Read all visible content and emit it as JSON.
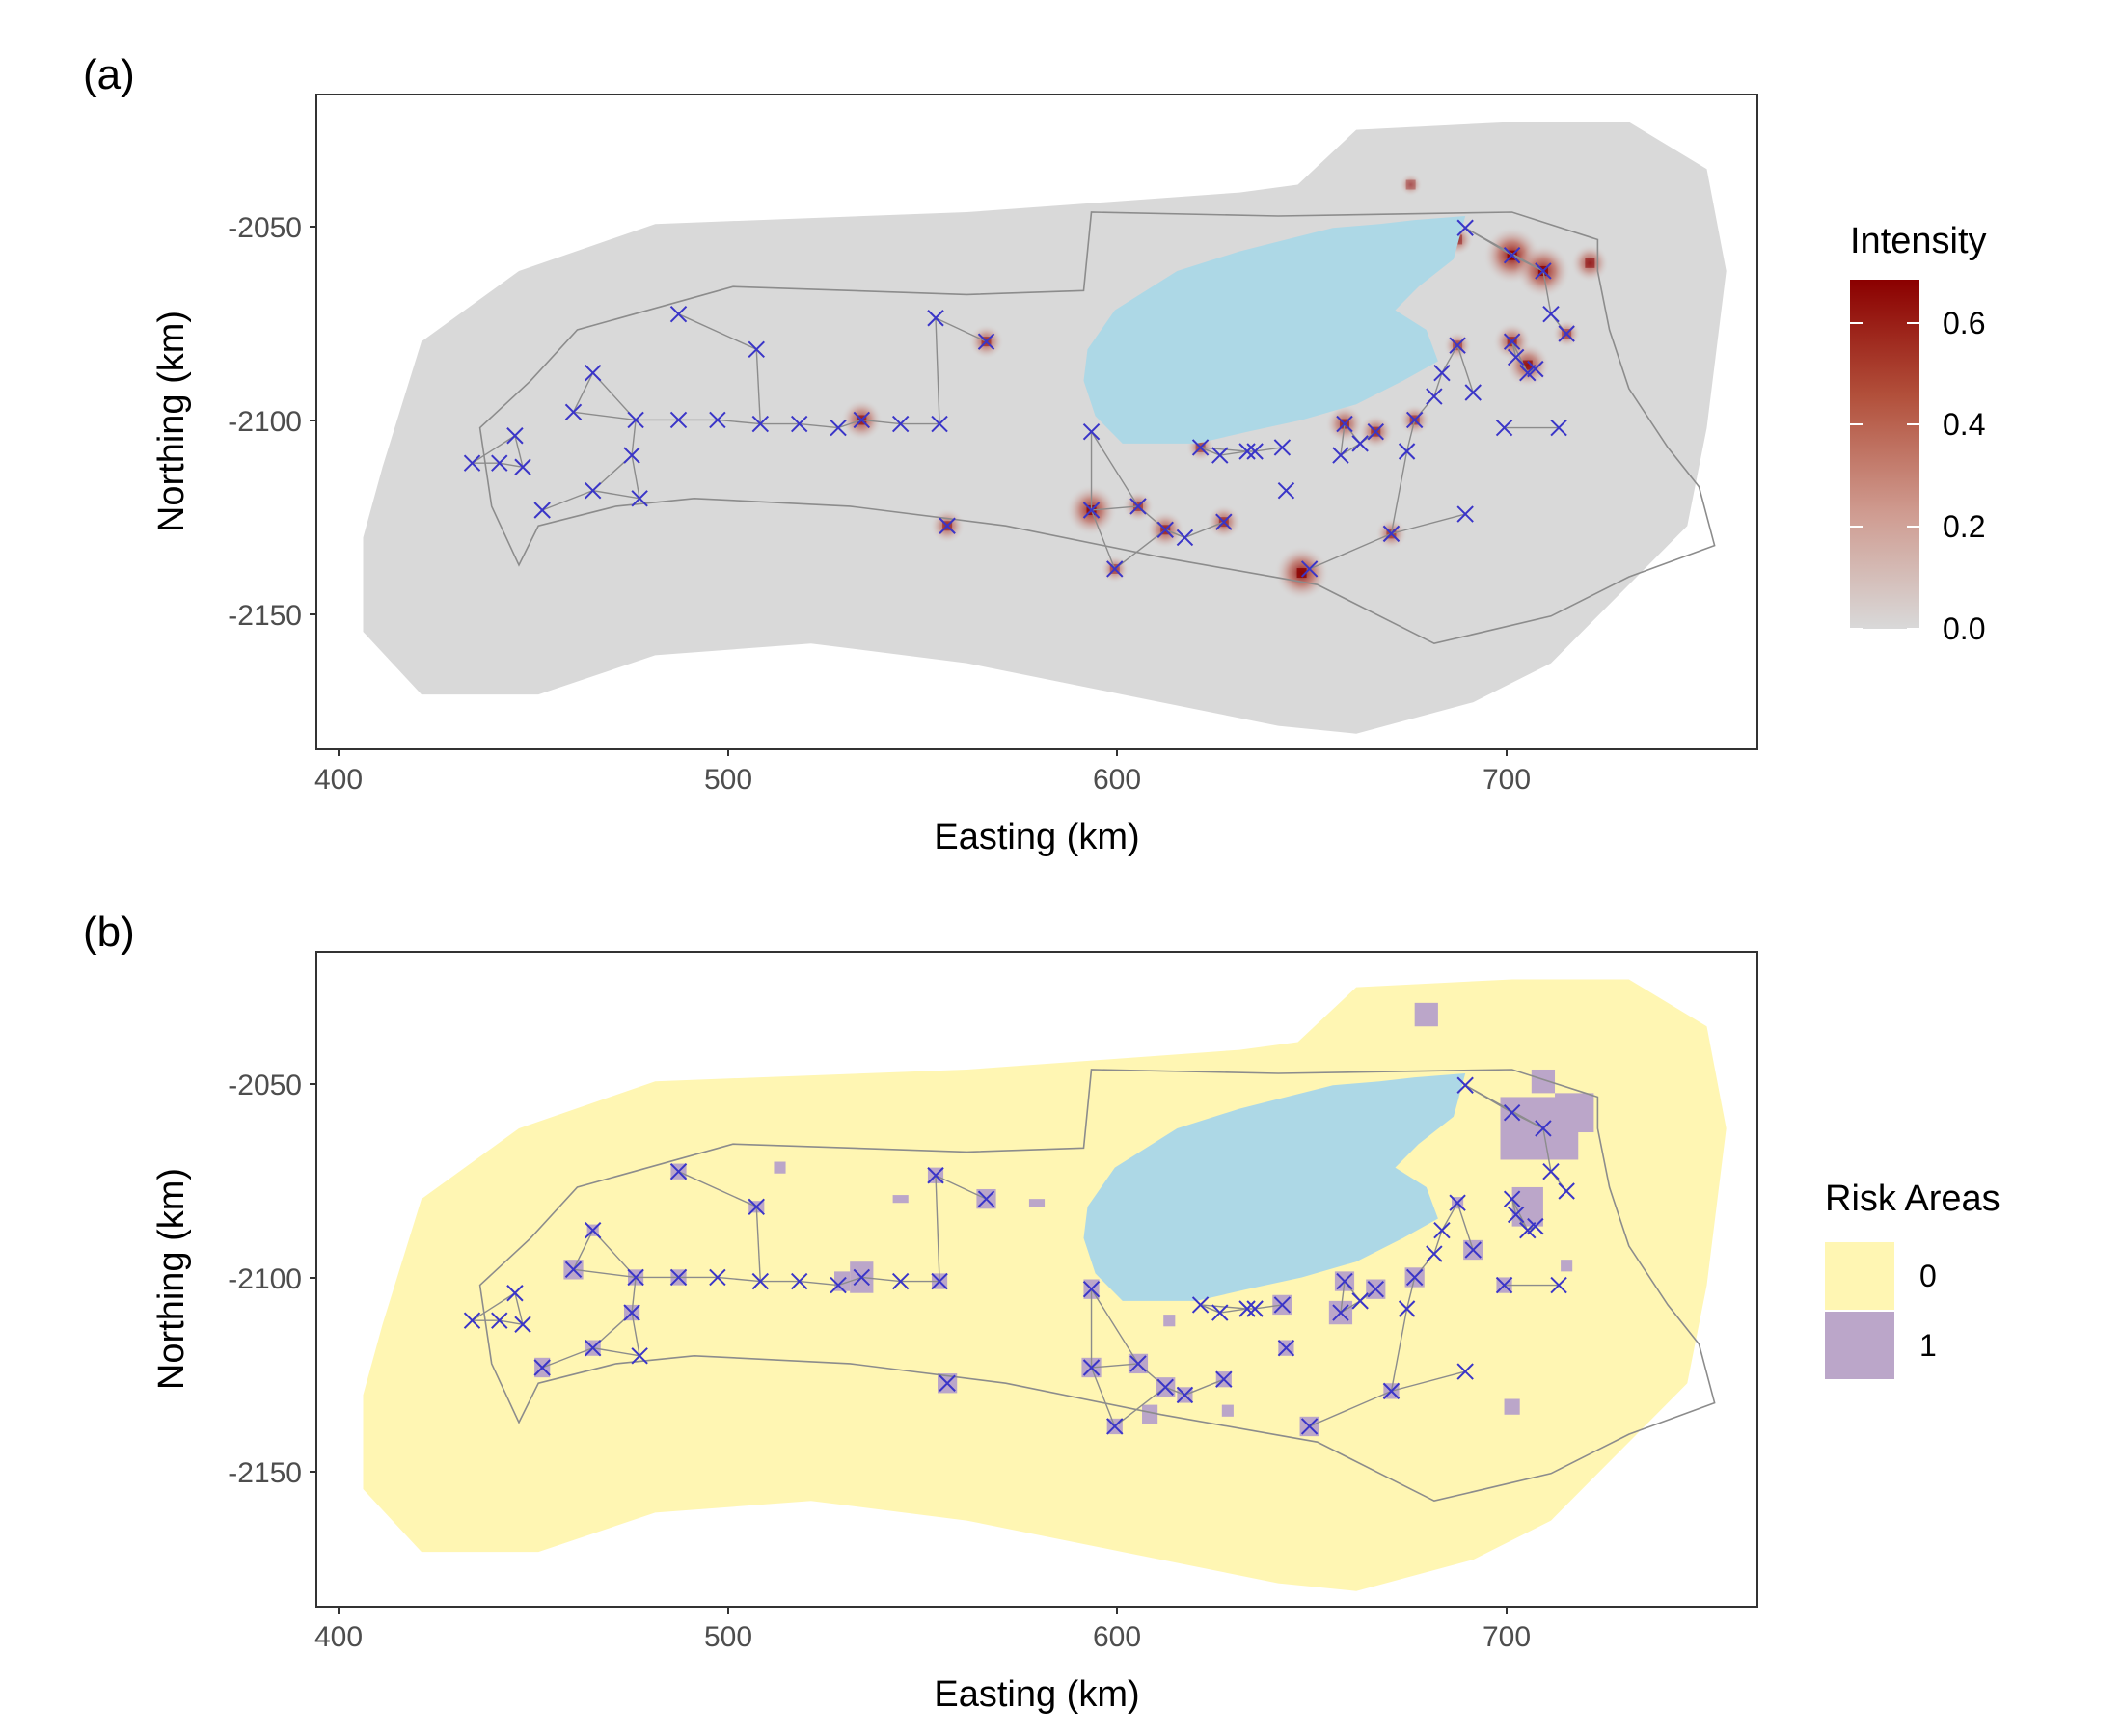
{
  "panels": [
    {
      "label": "(a)",
      "xlabel": "Easting (km)",
      "ylabel": "Northing (km)",
      "xticks": [
        "400",
        "500",
        "600",
        "700"
      ],
      "yticks": [
        "-2050",
        "-2100",
        "-2150"
      ],
      "legend": {
        "title": "Intensity",
        "labels": [
          "0.6",
          "0.4",
          "0.2",
          "0.0"
        ],
        "gradient": [
          "#d9d9d9",
          "#cf9b90",
          "#b2503b",
          "#8b0000"
        ]
      }
    },
    {
      "label": "(b)",
      "xlabel": "Easting (km)",
      "ylabel": "Northing (km)",
      "xticks": [
        "400",
        "500",
        "600",
        "700"
      ],
      "yticks": [
        "-2050",
        "-2100",
        "-2150"
      ],
      "legend": {
        "title": "Risk Areas",
        "labels": [
          "0",
          "1"
        ],
        "colors": [
          "#fff6b3",
          "#bba6c9"
        ]
      }
    }
  ],
  "chart_data": {
    "type": "heatmap",
    "xlim": [
      393,
      763
    ],
    "ylim": [
      -2182,
      -2015
    ],
    "colors": {
      "background_a": "#d9d9d9",
      "background_b": "#fff6b3",
      "lake": "#add8e6",
      "marker": "#3a35c8",
      "hotspot": "#8b0000",
      "risk": "#bba6c9",
      "roads": "#8c8c8c"
    },
    "buffer_outline": [
      [
        410,
        -2110
      ],
      [
        420,
        -2078
      ],
      [
        445,
        -2060
      ],
      [
        480,
        -2048
      ],
      [
        560,
        -2045
      ],
      [
        630,
        -2040
      ],
      [
        645,
        -2038
      ],
      [
        660,
        -2024
      ],
      [
        700,
        -2022
      ],
      [
        730,
        -2022
      ],
      [
        750,
        -2034
      ],
      [
        755,
        -2060
      ],
      [
        750,
        -2100
      ],
      [
        745,
        -2125
      ],
      [
        730,
        -2140
      ],
      [
        710,
        -2160
      ],
      [
        690,
        -2170
      ],
      [
        660,
        -2178
      ],
      [
        640,
        -2176
      ],
      [
        600,
        -2168
      ],
      [
        560,
        -2160
      ],
      [
        520,
        -2155
      ],
      [
        480,
        -2158
      ],
      [
        450,
        -2168
      ],
      [
        420,
        -2168
      ],
      [
        405,
        -2152
      ],
      [
        405,
        -2128
      ]
    ],
    "region_outline": [
      [
        435,
        -2100
      ],
      [
        448,
        -2088
      ],
      [
        460,
        -2075
      ],
      [
        500,
        -2064
      ],
      [
        560,
        -2066
      ],
      [
        590,
        -2065
      ],
      [
        592,
        -2045
      ],
      [
        640,
        -2046
      ],
      [
        700,
        -2045
      ],
      [
        722,
        -2052
      ],
      [
        722,
        -2060
      ],
      [
        725,
        -2075
      ],
      [
        730,
        -2090
      ],
      [
        740,
        -2105
      ],
      [
        748,
        -2115
      ],
      [
        752,
        -2130
      ],
      [
        730,
        -2138
      ],
      [
        710,
        -2148
      ],
      [
        680,
        -2155
      ],
      [
        650,
        -2140
      ],
      [
        610,
        -2133
      ],
      [
        570,
        -2125
      ],
      [
        530,
        -2120
      ],
      [
        490,
        -2118
      ],
      [
        470,
        -2120
      ],
      [
        450,
        -2125
      ],
      [
        445,
        -2135
      ],
      [
        438,
        -2120
      ]
    ],
    "lake_outline": [
      [
        591,
        -2080
      ],
      [
        598,
        -2070
      ],
      [
        614,
        -2060
      ],
      [
        630,
        -2055
      ],
      [
        654,
        -2049
      ],
      [
        666,
        -2048
      ],
      [
        675,
        -2047
      ],
      [
        688,
        -2046
      ],
      [
        685,
        -2057
      ],
      [
        676,
        -2064
      ],
      [
        670,
        -2070
      ],
      [
        678,
        -2075
      ],
      [
        681,
        -2083
      ],
      [
        672,
        -2088
      ],
      [
        660,
        -2094
      ],
      [
        646,
        -2098
      ],
      [
        632,
        -2101
      ],
      [
        619,
        -2104
      ],
      [
        610,
        -2104
      ],
      [
        600,
        -2104
      ],
      [
        593,
        -2097
      ],
      [
        590,
        -2088
      ]
    ],
    "points": [
      [
        433,
        -2109
      ],
      [
        440,
        -2109
      ],
      [
        444,
        -2102
      ],
      [
        446,
        -2110
      ],
      [
        451,
        -2121
      ],
      [
        459,
        -2096
      ],
      [
        464,
        -2086
      ],
      [
        464,
        -2116
      ],
      [
        474,
        -2107
      ],
      [
        475,
        -2098
      ],
      [
        476,
        -2118
      ],
      [
        486,
        -2071
      ],
      [
        486,
        -2098
      ],
      [
        496,
        -2098
      ],
      [
        506,
        -2080
      ],
      [
        507,
        -2099
      ],
      [
        517,
        -2099
      ],
      [
        527,
        -2100
      ],
      [
        533,
        -2098
      ],
      [
        543,
        -2099
      ],
      [
        552,
        -2072
      ],
      [
        553,
        -2099
      ],
      [
        555,
        -2125
      ],
      [
        565,
        -2078
      ],
      [
        592,
        -2101
      ],
      [
        592,
        -2121
      ],
      [
        598,
        -2136
      ],
      [
        604,
        -2120
      ],
      [
        611,
        -2126
      ],
      [
        616,
        -2128
      ],
      [
        620,
        -2105
      ],
      [
        625,
        -2107
      ],
      [
        626,
        -2124
      ],
      [
        632,
        -2106
      ],
      [
        634,
        -2106
      ],
      [
        641,
        -2105
      ],
      [
        642,
        -2116
      ],
      [
        648,
        -2136
      ],
      [
        656,
        -2107
      ],
      [
        657,
        -2099
      ],
      [
        661,
        -2104
      ],
      [
        665,
        -2101
      ],
      [
        669,
        -2127
      ],
      [
        673,
        -2106
      ],
      [
        675,
        -2098
      ],
      [
        680,
        -2092
      ],
      [
        682,
        -2086
      ],
      [
        686,
        -2079
      ],
      [
        688,
        -2122
      ],
      [
        688,
        -2049
      ],
      [
        690,
        -2091
      ],
      [
        698,
        -2100
      ],
      [
        700,
        -2056
      ],
      [
        700,
        -2078
      ],
      [
        701,
        -2082
      ],
      [
        704,
        -2086
      ],
      [
        706,
        -2085
      ],
      [
        708,
        -2060
      ],
      [
        710,
        -2071
      ],
      [
        712,
        -2100
      ],
      [
        714,
        -2076
      ]
    ],
    "intensity_hotspots": [
      [
        700,
        -2056,
        0.65
      ],
      [
        708,
        -2060,
        0.6
      ],
      [
        592,
        -2121,
        0.55
      ],
      [
        646,
        -2137,
        0.6
      ],
      [
        533,
        -2098,
        0.4
      ],
      [
        704,
        -2084,
        0.45
      ],
      [
        700,
        -2078,
        0.35
      ],
      [
        565,
        -2078,
        0.3
      ],
      [
        657,
        -2099,
        0.35
      ],
      [
        611,
        -2126,
        0.35
      ],
      [
        555,
        -2125,
        0.3
      ],
      [
        669,
        -2127,
        0.25
      ],
      [
        686,
        -2079,
        0.2
      ],
      [
        598,
        -2136,
        0.2
      ],
      [
        675,
        -2098,
        0.25
      ],
      [
        665,
        -2101,
        0.3
      ],
      [
        620,
        -2105,
        0.2
      ],
      [
        626,
        -2124,
        0.3
      ],
      [
        720,
        -2058,
        0.35
      ],
      [
        686,
        -2052,
        0.25
      ],
      [
        674,
        -2038,
        0.12
      ],
      [
        714,
        -2076,
        0.2
      ],
      [
        604,
        -2120,
        0.25
      ]
    ],
    "risk_cells": [
      [
        707,
        -2060,
        20,
        16
      ],
      [
        708,
        -2048,
        6,
        6
      ],
      [
        716,
        -2056,
        10,
        10
      ],
      [
        678,
        -2031,
        6,
        6
      ],
      [
        704,
        -2080,
        8,
        10
      ],
      [
        486,
        -2071,
        4,
        4
      ],
      [
        506,
        -2080,
        4,
        3
      ],
      [
        512,
        -2070,
        3,
        3
      ],
      [
        552,
        -2072,
        4,
        4
      ],
      [
        565,
        -2078,
        5,
        5
      ],
      [
        592,
        -2101,
        4,
        5
      ],
      [
        592,
        -2121,
        5,
        5
      ],
      [
        598,
        -2136,
        4,
        4
      ],
      [
        604,
        -2120,
        5,
        5
      ],
      [
        611,
        -2126,
        5,
        5
      ],
      [
        607,
        -2133,
        4,
        5
      ],
      [
        626,
        -2124,
        4,
        4
      ],
      [
        616,
        -2128,
        4,
        4
      ],
      [
        641,
        -2105,
        5,
        5
      ],
      [
        642,
        -2116,
        4,
        4
      ],
      [
        648,
        -2136,
        5,
        5
      ],
      [
        656,
        -2107,
        6,
        6
      ],
      [
        657,
        -2099,
        5,
        5
      ],
      [
        665,
        -2101,
        5,
        5
      ],
      [
        669,
        -2127,
        4,
        4
      ],
      [
        675,
        -2098,
        5,
        5
      ],
      [
        690,
        -2091,
        5,
        5
      ],
      [
        698,
        -2100,
        4,
        4
      ],
      [
        686,
        -2079,
        3,
        3
      ],
      [
        459,
        -2096,
        5,
        5
      ],
      [
        464,
        -2086,
        3,
        3
      ],
      [
        464,
        -2116,
        4,
        4
      ],
      [
        451,
        -2121,
        4,
        5
      ],
      [
        474,
        -2107,
        4,
        4
      ],
      [
        475,
        -2098,
        4,
        4
      ],
      [
        486,
        -2098,
        4,
        4
      ],
      [
        528,
        -2099,
        4,
        5
      ],
      [
        533,
        -2098,
        6,
        8
      ],
      [
        553,
        -2099,
        4,
        4
      ],
      [
        555,
        -2125,
        5,
        5
      ],
      [
        612,
        -2109,
        3,
        3
      ],
      [
        662,
        -2090,
        3,
        3
      ],
      [
        700,
        -2131,
        4,
        4
      ],
      [
        714,
        -2095,
        3,
        3
      ],
      [
        627,
        -2132,
        3,
        3
      ],
      [
        578,
        -2079,
        4,
        2
      ],
      [
        543,
        -2078,
        4,
        2
      ]
    ]
  }
}
